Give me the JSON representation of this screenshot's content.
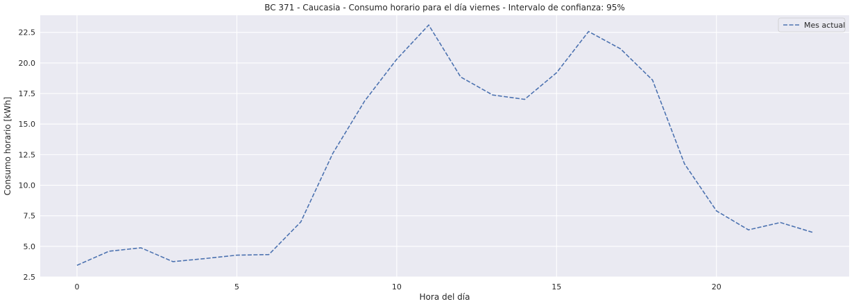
{
  "chart_data": {
    "type": "line",
    "title": "BC 371 - Caucasia - Consumo horario para el día viernes - Intervalo de confianza: 95%",
    "xlabel": "Hora del día",
    "ylabel": "Consumo horario [kWh]",
    "x": [
      0,
      1,
      2,
      3,
      4,
      5,
      6,
      7,
      8,
      9,
      10,
      11,
      12,
      13,
      14,
      15,
      16,
      17,
      18,
      19,
      20,
      21,
      22,
      23
    ],
    "series": [
      {
        "name": "Mes actual",
        "values": [
          3.45,
          4.6,
          4.88,
          3.75,
          4.0,
          4.28,
          4.33,
          7.0,
          12.6,
          16.9,
          20.3,
          23.1,
          18.85,
          17.38,
          17.02,
          19.2,
          22.57,
          21.15,
          18.6,
          11.75,
          7.9,
          6.35,
          6.95,
          6.15
        ],
        "line_style": "dashed",
        "color": "#4c72b0"
      }
    ],
    "xlim": [
      -1.15,
      24.15
    ],
    "ylim": [
      2.5,
      23.9
    ],
    "xticks": [
      0,
      5,
      10,
      15,
      20
    ],
    "xtick_labels": [
      "0",
      "5",
      "10",
      "15",
      "20"
    ],
    "yticks": [
      2.5,
      5.0,
      7.5,
      10.0,
      12.5,
      15.0,
      17.5,
      20.0,
      22.5
    ],
    "ytick_labels": [
      "2.5",
      "5.0",
      "7.5",
      "10.0",
      "12.5",
      "15.0",
      "17.5",
      "20.0",
      "22.5"
    ],
    "grid": true,
    "legend_position": "top-right",
    "background_color": "#eaeaf2",
    "grid_color": "#ffffff"
  }
}
